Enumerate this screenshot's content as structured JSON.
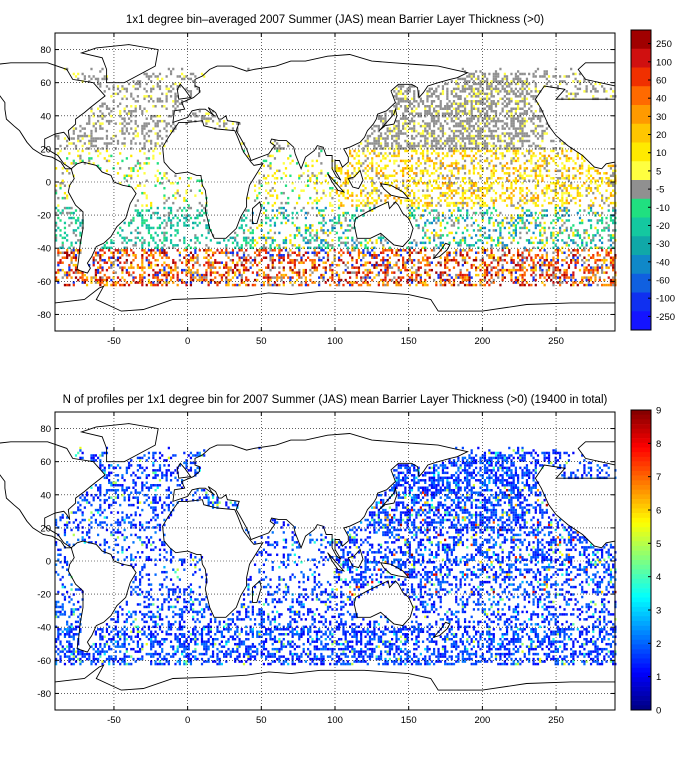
{
  "chart_data": [
    {
      "type": "heatmap",
      "title": "1x1 degree bin–averaged 2007 Summer (JAS) mean Barrier Layer Thickness (>0)",
      "xlabel": "",
      "ylabel": "",
      "xlim": [
        -90,
        290
      ],
      "ylim": [
        -90,
        90
      ],
      "xticks": [
        "-50",
        "0",
        "50",
        "100",
        "150",
        "200",
        "250"
      ],
      "yticks": [
        "80",
        "60",
        "40",
        "20",
        "0",
        "-20",
        "-40",
        "-60",
        "-80"
      ],
      "grid": true,
      "colorbar": {
        "tick_labels": [
          "250",
          "100",
          "60",
          "40",
          "30",
          "20",
          "10",
          "5",
          "-5",
          "-10",
          "-20",
          "-30",
          "-40",
          "-60",
          "-100",
          "-250"
        ],
        "colors": [
          "#a00000",
          "#d01010",
          "#f03000",
          "#ff6a00",
          "#ff9a00",
          "#ffc600",
          "#ffea00",
          "#ffff40",
          "#909090",
          "#20e080",
          "#14c8a0",
          "#10a8a8",
          "#1088c8",
          "#1060e0",
          "#1030f0",
          "#1414ff"
        ]
      },
      "regions": [
        {
          "lon": [
            -90,
            290
          ],
          "lat": [
            20,
            70
          ],
          "value": "5 to -5 (grey, Northern Hemisphere oceans)"
        },
        {
          "lon": [
            100,
            290
          ],
          "lat": [
            -15,
            25
          ],
          "value": "5 to 30 (yellow-orange, tropical Pacific)"
        },
        {
          "lon": [
            -60,
            40
          ],
          "lat": [
            -45,
            -10
          ],
          "value": "-10 to -30 (green, South Atlantic)"
        },
        {
          "lon": [
            -90,
            290
          ],
          "lat": [
            -60,
            -40
          ],
          "value": "30 to 250 (orange-red, Southern Ocean)"
        }
      ]
    },
    {
      "type": "heatmap",
      "title": "N of profiles per 1x1 degree bin for 2007 Summer (JAS) mean Barrier Layer Thickness (>0) (19400 in total)",
      "xlabel": "",
      "ylabel": "",
      "xlim": [
        -90,
        290
      ],
      "ylim": [
        -90,
        90
      ],
      "xticks": [
        "-50",
        "0",
        "50",
        "100",
        "150",
        "200",
        "250"
      ],
      "yticks": [
        "80",
        "60",
        "40",
        "20",
        "0",
        "-20",
        "-40",
        "-60",
        "-80"
      ],
      "grid": true,
      "colorbar": {
        "tick_labels": [
          "9",
          "8",
          "7",
          "6",
          "5",
          "4",
          "3",
          "2",
          "1",
          "0"
        ],
        "range": [
          0,
          9
        ]
      },
      "regions": [
        {
          "lon": [
            -90,
            290
          ],
          "lat": [
            -65,
            70
          ],
          "value": "1 to 2 (blue, dominant)"
        },
        {
          "lon": [
            100,
            290
          ],
          "lat": [
            -20,
            45
          ],
          "value": "occasional 4 to 9 (cyan-red)"
        }
      ]
    }
  ]
}
